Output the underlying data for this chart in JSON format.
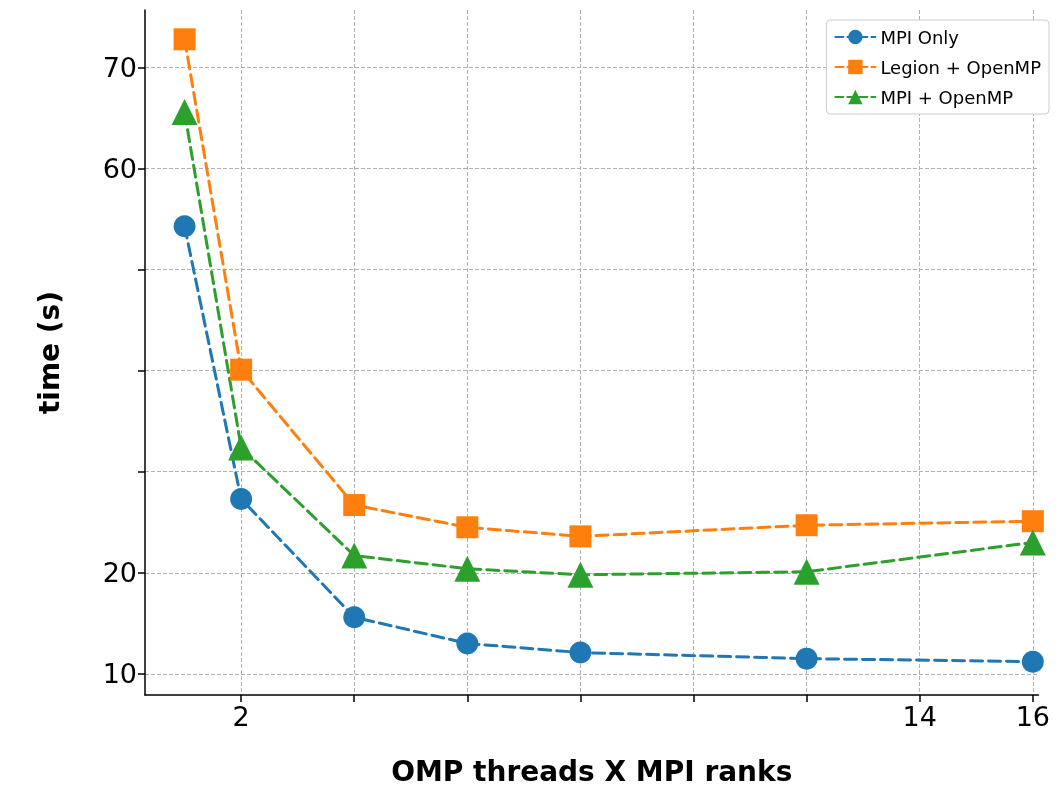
{
  "chart_data": {
    "type": "line",
    "xlabel": "OMP threads X MPI ranks",
    "ylabel": "time (s)",
    "xlim": [
      0.3,
      16.1
    ],
    "ylim": [
      7.9,
      75.7
    ],
    "xticks": [
      2,
      {
        "value": 4,
        "label": null
      },
      {
        "value": 6,
        "label": null
      },
      {
        "value": 8,
        "label": null
      },
      {
        "value": 10,
        "label": null
      },
      {
        "value": 12,
        "label": null
      },
      14,
      16
    ],
    "yticks": [
      10,
      20,
      {
        "value": 30,
        "label": null
      },
      {
        "value": 40,
        "label": null
      },
      {
        "value": 50,
        "label": null
      },
      60,
      70
    ],
    "x": [
      1,
      2,
      4,
      6,
      8,
      12,
      16
    ],
    "series": [
      {
        "name": "MPI Only",
        "color": "#1f77b4",
        "marker": "circle",
        "values": [
          54.3,
          27.3,
          15.6,
          13.0,
          12.1,
          11.5,
          11.2
        ]
      },
      {
        "name": "Legion + OpenMP",
        "color": "#ff7f0e",
        "marker": "square",
        "values": [
          72.8,
          40.1,
          26.7,
          24.5,
          23.6,
          24.7,
          25.1
        ]
      },
      {
        "name": "MPI + OpenMP",
        "color": "#2ca02c",
        "marker": "triangle",
        "values": [
          65.6,
          32.4,
          21.7,
          20.4,
          19.8,
          20.1,
          23.0
        ]
      }
    ],
    "line_style": "dashed",
    "grid": true,
    "legend": "top right"
  }
}
